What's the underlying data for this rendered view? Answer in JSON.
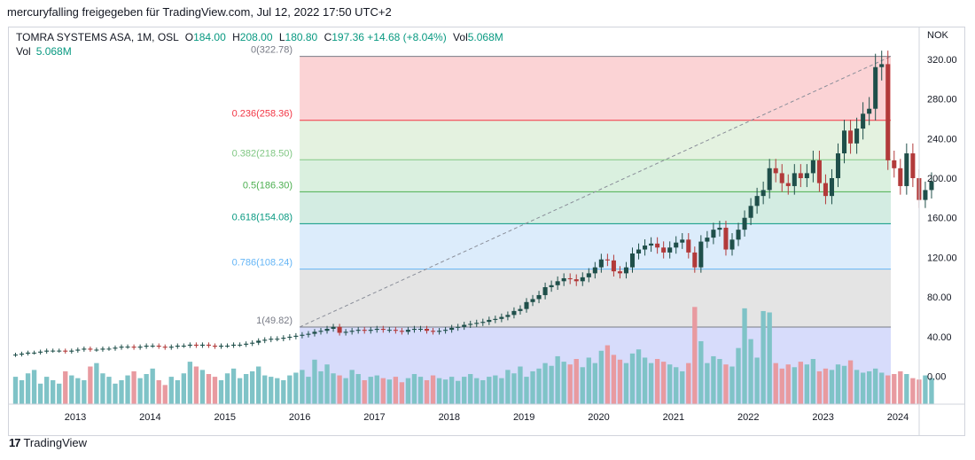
{
  "header": {
    "attribution": "mercuryfalling freigegeben für TradingView.com, Jul 12, 2022 17:50 UTC+2"
  },
  "legend": {
    "symbol": "TOMRA SYSTEMS ASA, 1M, OSL",
    "open_label": "O",
    "open_value": "184.00",
    "high_label": "H",
    "high_value": "208.00",
    "low_label": "L",
    "low_value": "180.80",
    "close_label": "C",
    "close_value": "197.36",
    "change": "+14.68 (+8.04%)",
    "vol_label": "Vol",
    "vol_value": "5.068M",
    "vol2_label": "Vol",
    "vol2_value": "5.068M"
  },
  "footer": {
    "logo_text": "TradingView",
    "logo_mark": "17"
  },
  "colors": {
    "up": "#1f4f4a",
    "down": "#b23a3a",
    "vol_up": "#7fc3c7",
    "vol_down": "#e89aa0",
    "dashed": "#8a8e99"
  },
  "chart_data": {
    "type": "candlestick",
    "currency": "NOK",
    "y_ticks": [
      0,
      40,
      80,
      120,
      160,
      200,
      240,
      280,
      320
    ],
    "y_tick_labels": [
      "0.00",
      "40.00",
      "80.00",
      "120.00",
      "160.00",
      "200.00",
      "240.00",
      "280.00",
      "320.00"
    ],
    "ylim": [
      -28,
      352
    ],
    "x_tick_labels": [
      "2013",
      "2014",
      "2015",
      "2016",
      "2017",
      "2018",
      "2019",
      "2020",
      "2021",
      "2022",
      "2023",
      "2024"
    ],
    "x_tick_years": [
      2013,
      2014,
      2015,
      2016,
      2017,
      2018,
      2019,
      2020,
      2021,
      2022,
      2023,
      2024
    ],
    "start_year": 2012.2,
    "fib_start_year": 2016.0,
    "fib_end_year": 2024.0,
    "fibonacci": [
      {
        "ratio": "0",
        "value": 322.78,
        "label": "0(322.78)",
        "color": "#787b86",
        "fill": "#fbd3d5"
      },
      {
        "ratio": "0.236",
        "value": 258.36,
        "label": "0.236(258.36)",
        "color": "#f23645",
        "fill": "#e4f2e0"
      },
      {
        "ratio": "0.382",
        "value": 218.5,
        "label": "0.382(218.50)",
        "color": "#81c784",
        "fill": "#daf0df"
      },
      {
        "ratio": "0.5",
        "value": 186.3,
        "label": "0.5(186.30)",
        "color": "#4caf50",
        "fill": "#d3ece2"
      },
      {
        "ratio": "0.618",
        "value": 154.08,
        "label": "0.618(154.08)",
        "color": "#089981",
        "fill": "#dcecfb"
      },
      {
        "ratio": "0.786",
        "value": 108.24,
        "label": "0.786(108.24)",
        "color": "#64b5f6",
        "fill": "#e4e4e4"
      },
      {
        "ratio": "1",
        "value": 49.82,
        "label": "1(49.82)",
        "color": "#787b86",
        "fill": "#d7dcfb"
      }
    ],
    "trend_line": {
      "from_value": 49.82,
      "to_value": 322.78
    },
    "close": [
      22,
      23,
      24,
      24,
      25,
      26,
      26,
      26,
      25,
      26,
      27,
      28,
      27,
      27,
      28,
      28,
      29,
      30,
      30,
      29,
      30,
      31,
      31,
      30,
      29,
      30,
      31,
      31,
      32,
      31,
      32,
      31,
      30,
      31,
      31,
      32,
      32,
      33,
      34,
      36,
      37,
      38,
      38,
      39,
      40,
      41,
      42,
      43,
      45,
      46,
      48,
      50,
      44,
      45,
      46,
      47,
      46,
      47,
      48,
      47,
      47,
      46,
      45,
      47,
      48,
      48,
      46,
      45,
      46,
      47,
      49,
      50,
      52,
      53,
      54,
      55,
      57,
      58,
      60,
      62,
      66,
      68,
      75,
      78,
      82,
      90,
      92,
      96,
      99,
      98,
      96,
      100,
      104,
      110,
      118,
      117,
      106,
      104,
      110,
      124,
      128,
      132,
      134,
      130,
      125,
      130,
      135,
      138,
      125,
      110,
      136,
      140,
      148,
      150,
      128,
      138,
      148,
      160,
      172,
      182,
      188,
      210,
      205,
      195,
      192,
      205,
      200,
      205,
      218,
      195,
      182,
      200,
      225,
      248,
      235,
      250,
      265,
      270,
      312,
      315,
      218,
      210,
      192,
      225,
      200,
      178,
      188,
      197
    ],
    "volume": [
      40,
      35,
      45,
      50,
      30,
      40,
      35,
      30,
      48,
      42,
      38,
      35,
      55,
      60,
      45,
      40,
      30,
      35,
      42,
      48,
      38,
      44,
      52,
      35,
      28,
      40,
      35,
      45,
      62,
      55,
      50,
      44,
      40,
      35,
      45,
      52,
      38,
      44,
      48,
      55,
      42,
      40,
      38,
      35,
      42,
      46,
      50,
      40,
      65,
      48,
      58,
      45,
      42,
      38,
      50,
      44,
      35,
      40,
      42,
      38,
      36,
      40,
      32,
      38,
      44,
      40,
      35,
      42,
      38,
      36,
      40,
      34,
      40,
      44,
      38,
      35,
      40,
      42,
      38,
      50,
      45,
      55,
      40,
      48,
      52,
      60,
      56,
      70,
      62,
      58,
      66,
      54,
      68,
      60,
      78,
      86,
      72,
      65,
      60,
      74,
      80,
      68,
      60,
      66,
      62,
      58,
      54,
      48,
      60,
      142,
      92,
      60,
      70,
      66,
      58,
      55,
      82,
      140,
      95,
      68,
      136,
      134,
      60,
      52,
      58,
      54,
      62,
      58,
      66,
      48,
      52,
      50,
      58,
      56,
      64,
      50,
      46,
      48,
      52,
      46,
      42,
      44,
      48,
      44,
      38,
      36,
      42,
      38
    ],
    "volume_max": 145
  }
}
